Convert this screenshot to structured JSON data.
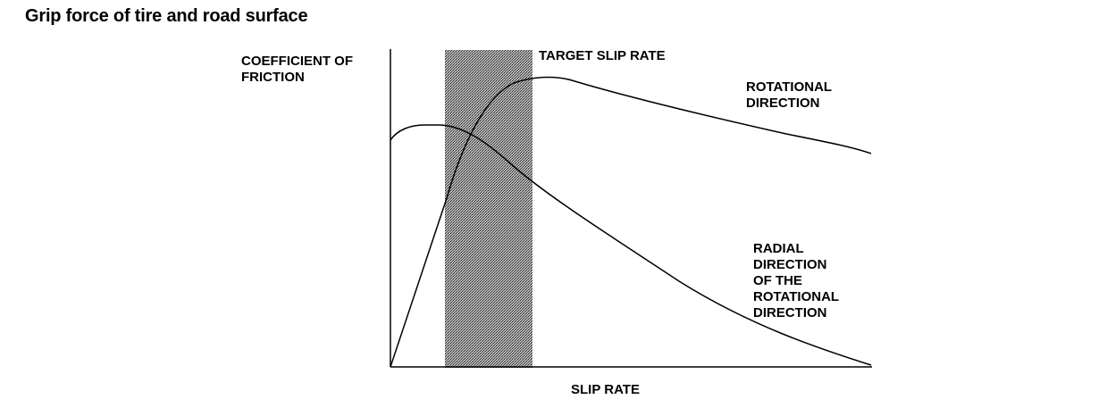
{
  "title": "Grip force of tire and road surface",
  "labels": {
    "y_axis": [
      "COEFFICIENT OF",
      "FRICTION"
    ],
    "x_axis": "SLIP RATE",
    "target": "TARGET SLIP RATE",
    "rotational": [
      "ROTATIONAL",
      "DIRECTION"
    ],
    "radial": [
      "RADIAL",
      "DIRECTION",
      "OF THE",
      "ROTATIONAL",
      "DIRECTION"
    ]
  },
  "colors": {
    "ink": "#000000",
    "band": "#8c8c8c"
  }
}
